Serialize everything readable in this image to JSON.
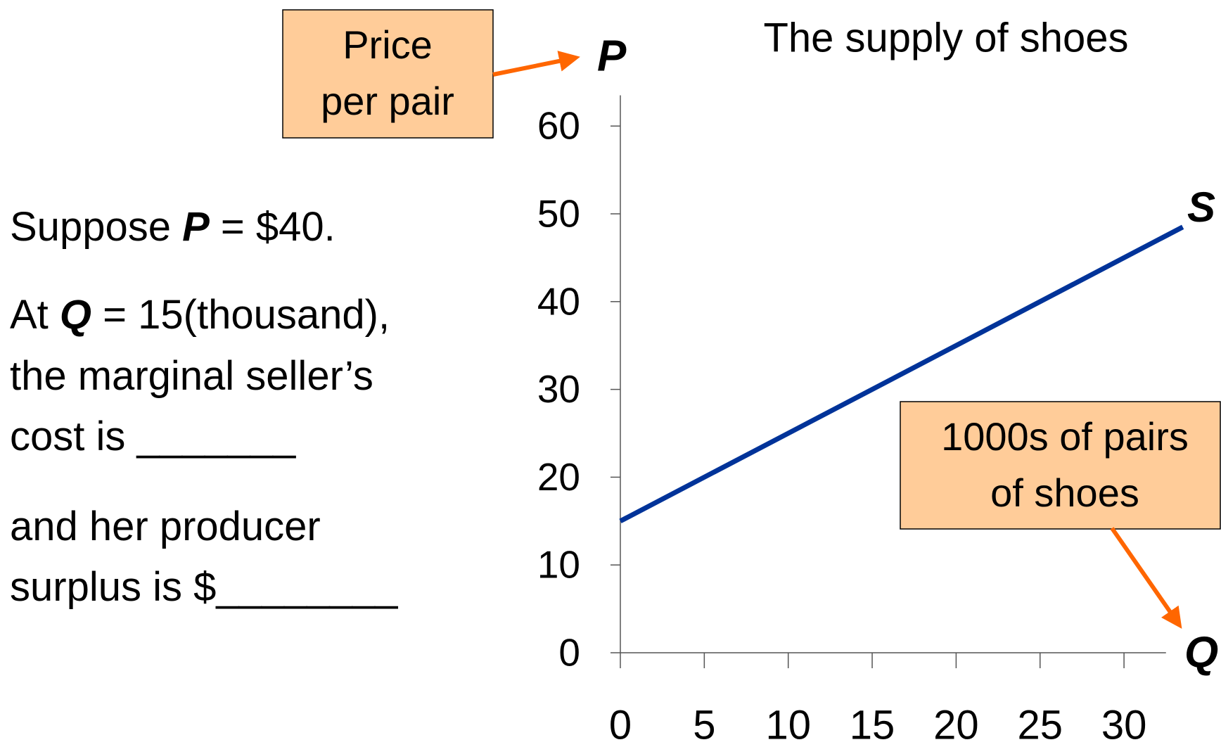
{
  "chart_data": {
    "type": "line",
    "title": "The supply of shoes",
    "x": [
      0,
      33.5
    ],
    "series": [
      {
        "name": "S",
        "color": "#003399",
        "values": [
          15,
          48.5
        ]
      }
    ],
    "xlim": [
      0,
      32.5
    ],
    "xticks": [
      0,
      5,
      10,
      15,
      20,
      25,
      30
    ],
    "ylim": [
      0,
      63.5
    ],
    "yticks": [
      0,
      10,
      20,
      30,
      40,
      50,
      60
    ],
    "y_label": "P",
    "x_label": "Q",
    "y_note": [
      "Price",
      "per pair"
    ],
    "x_note": [
      "1000s of pairs",
      "of shoes"
    ],
    "note_color": "#ffcc99",
    "arrow_color": "#ff6600",
    "text_lines": [
      [
        {
          "text": "Suppose "
        },
        {
          "text": "P",
          "bold": true
        },
        {
          "text": " = $40."
        }
      ],
      [
        {
          "text": "At "
        },
        {
          "text": "Q",
          "bold": true
        },
        {
          "text": " = 15(thousand),"
        }
      ],
      [
        {
          "text": "the marginal seller’s"
        }
      ],
      [
        {
          "text": "cost is _______"
        }
      ],
      [
        {
          "text": "and her producer"
        }
      ],
      [
        {
          "text": "surplus is $________"
        }
      ]
    ]
  }
}
